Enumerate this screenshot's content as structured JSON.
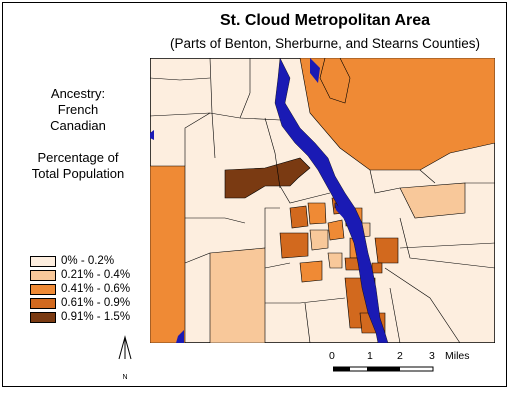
{
  "title": "St. Cloud Metropolitan Area",
  "subtitle": "(Parts of Benton, Sherburne, and Stearns Counties)",
  "side_labels": {
    "ancestry_line1": "Ancestry:",
    "ancestry_line2": "French",
    "ancestry_line3": "Canadian",
    "measure_line1": "Percentage of",
    "measure_line2": "Total Population"
  },
  "legend": {
    "items": [
      {
        "label": "0% - 0.2%",
        "color": "#fdeedf"
      },
      {
        "label": "0.21% - 0.4%",
        "color": "#f8c89a"
      },
      {
        "label": "0.41% - 0.6%",
        "color": "#ef8a35"
      },
      {
        "label": "0.61% - 0.9%",
        "color": "#d2691e"
      },
      {
        "label": "0.91% - 1.5%",
        "color": "#7a3a12"
      }
    ]
  },
  "colors": {
    "water": "#1a1ab4",
    "boundary": "#000000",
    "border": "#000000"
  },
  "scale_bar": {
    "labels": [
      "0",
      "1",
      "2",
      "3"
    ],
    "unit": "Miles"
  },
  "north_arrow": {
    "label": "N"
  }
}
